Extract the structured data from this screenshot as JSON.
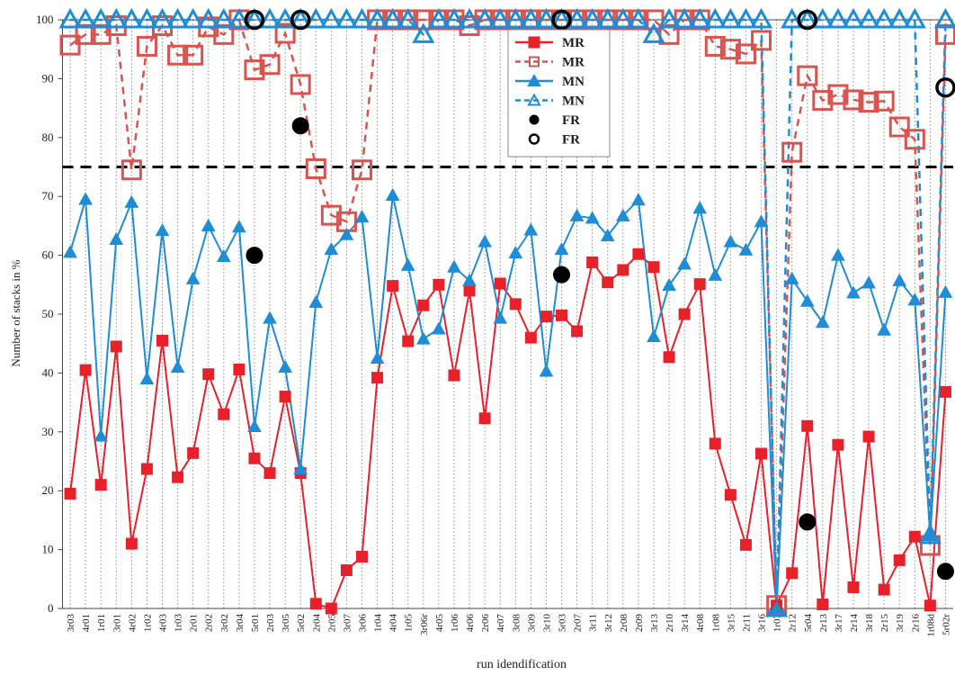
{
  "chart_data": {
    "type": "line",
    "x_label": "run idendification",
    "y_label": "Number of stacks in %",
    "categories": [
      "3r03",
      "4r01",
      "1r01",
      "3r01",
      "4r02",
      "1r02",
      "4r03",
      "1r03",
      "2r01",
      "2r02",
      "3r02",
      "3r04",
      "5r01",
      "2r03",
      "3r05",
      "5r02",
      "2r04",
      "2r05",
      "3r07",
      "3r06",
      "1r04",
      "4r04",
      "1r05",
      "3r06r",
      "4r05",
      "1r06",
      "4r06",
      "2r06",
      "4r07",
      "3r08",
      "3r09",
      "3r10",
      "5r03",
      "2r07",
      "3r11",
      "3r12",
      "2r08",
      "2r09",
      "3r13",
      "2r10",
      "3r14",
      "4r08",
      "1r08",
      "3r15",
      "2r11",
      "3r16",
      "1r07",
      "2r12",
      "5r04",
      "2r13",
      "3r17",
      "2r14",
      "3r18",
      "2r15",
      "3r19",
      "2r16",
      "1r08d",
      "5r02r"
    ],
    "series": [
      {
        "name": "MR",
        "color": "#e8202a",
        "line": "solid",
        "marker": "square",
        "filled": true,
        "values": [
          19.5,
          40.5,
          21,
          44.5,
          11,
          23.7,
          45.5,
          22.3,
          26.4,
          39.8,
          33,
          40.6,
          25.5,
          23,
          36,
          23,
          0.8,
          0,
          6.5,
          8.8,
          39.2,
          54.8,
          45.4,
          51.5,
          55,
          39.6,
          54,
          32.3,
          55.2,
          51.7,
          46,
          49.6,
          49.8,
          47.1,
          58.8,
          55.4,
          57.5,
          60.2,
          58,
          42.7,
          50,
          55.1,
          28,
          19.3,
          10.8,
          26.3,
          0.5,
          6,
          31,
          0.7,
          27.8,
          3.6,
          29.2,
          3.2,
          8.2,
          12.2,
          0.5,
          36.8
        ]
      },
      {
        "name": "MR",
        "color": "#d9534f",
        "line": "dashed",
        "marker": "square",
        "filled": false,
        "values": [
          95.7,
          97.5,
          97.5,
          99,
          74.5,
          95.5,
          99,
          94,
          94,
          98.8,
          97.5,
          100,
          91.5,
          92.4,
          97.7,
          89,
          74.7,
          66.8,
          65.7,
          74.5,
          100,
          100,
          100,
          100,
          100,
          100,
          99,
          100,
          100,
          100,
          100,
          100,
          100,
          100,
          100,
          100,
          100,
          100,
          100,
          97.5,
          100,
          100,
          95.5,
          95,
          94.2,
          96.5,
          0.5,
          77.5,
          90.5,
          86.3,
          87.3,
          86.4,
          86,
          86.2,
          81.8,
          79.7,
          10.7,
          97.5
        ]
      },
      {
        "name": "MN",
        "color": "#1f8dd6",
        "line": "solid",
        "marker": "triangle",
        "filled": true,
        "values": [
          60.5,
          69.5,
          29.3,
          62.7,
          69,
          39,
          64.2,
          41,
          56,
          65,
          59.8,
          64.8,
          30.9,
          49.3,
          41,
          23.7,
          52,
          61,
          63.5,
          66.5,
          42.5,
          70.2,
          58.3,
          45.8,
          47.5,
          58,
          55.7,
          62.3,
          49.3,
          60.4,
          64.3,
          40.3,
          61,
          66.7,
          66.3,
          63.3,
          66.7,
          69.4,
          46.2,
          54.9,
          58.5,
          68,
          56.6,
          62.3,
          60.9,
          65.7,
          0,
          56,
          52.2,
          48.6,
          60,
          53.6,
          55.3,
          47.3,
          55.7,
          52.4,
          12.4,
          53.7
        ]
      },
      {
        "name": "MN",
        "color": "#1f8dd6",
        "line": "dashed",
        "marker": "triangle",
        "filled": false,
        "values": [
          100,
          100,
          100,
          100,
          100,
          100,
          100,
          100,
          100,
          100,
          100,
          100,
          100,
          100,
          100,
          100,
          100,
          100,
          100,
          100,
          100,
          100,
          100,
          97.5,
          100,
          100,
          100,
          100,
          100,
          100,
          100,
          100,
          100,
          100,
          100,
          100,
          100,
          100,
          97.5,
          100,
          100,
          100,
          100,
          100,
          100,
          100,
          0,
          100,
          100,
          100,
          100,
          100,
          100,
          100,
          100,
          100,
          12.4,
          100
        ]
      },
      {
        "name": "FR",
        "color": "#000000",
        "line": "none",
        "marker": "circle",
        "filled": true,
        "values": [
          null,
          null,
          null,
          null,
          null,
          null,
          null,
          null,
          null,
          null,
          null,
          null,
          60,
          null,
          null,
          82,
          null,
          null,
          null,
          null,
          null,
          null,
          null,
          null,
          null,
          null,
          null,
          null,
          null,
          null,
          null,
          null,
          56.7,
          null,
          null,
          null,
          null,
          null,
          null,
          null,
          null,
          null,
          null,
          null,
          null,
          null,
          null,
          null,
          14.7,
          null,
          null,
          null,
          null,
          null,
          null,
          null,
          null,
          6.3
        ]
      },
      {
        "name": "FR",
        "color": "#000000",
        "line": "none",
        "marker": "circle",
        "filled": false,
        "values": [
          null,
          null,
          null,
          null,
          null,
          null,
          null,
          null,
          null,
          null,
          null,
          null,
          100,
          null,
          null,
          100,
          null,
          null,
          null,
          null,
          null,
          null,
          null,
          null,
          null,
          null,
          null,
          null,
          null,
          null,
          null,
          null,
          100,
          null,
          null,
          null,
          null,
          null,
          null,
          null,
          null,
          null,
          null,
          null,
          null,
          null,
          null,
          null,
          100,
          null,
          null,
          null,
          null,
          null,
          null,
          null,
          null,
          88.5
        ]
      }
    ],
    "reference_line": 75,
    "ylim": [
      0,
      100
    ],
    "yticks": [
      0,
      10,
      20,
      30,
      40,
      50,
      60,
      70,
      80,
      90,
      100
    ],
    "grid": true,
    "legend": "upper center"
  }
}
